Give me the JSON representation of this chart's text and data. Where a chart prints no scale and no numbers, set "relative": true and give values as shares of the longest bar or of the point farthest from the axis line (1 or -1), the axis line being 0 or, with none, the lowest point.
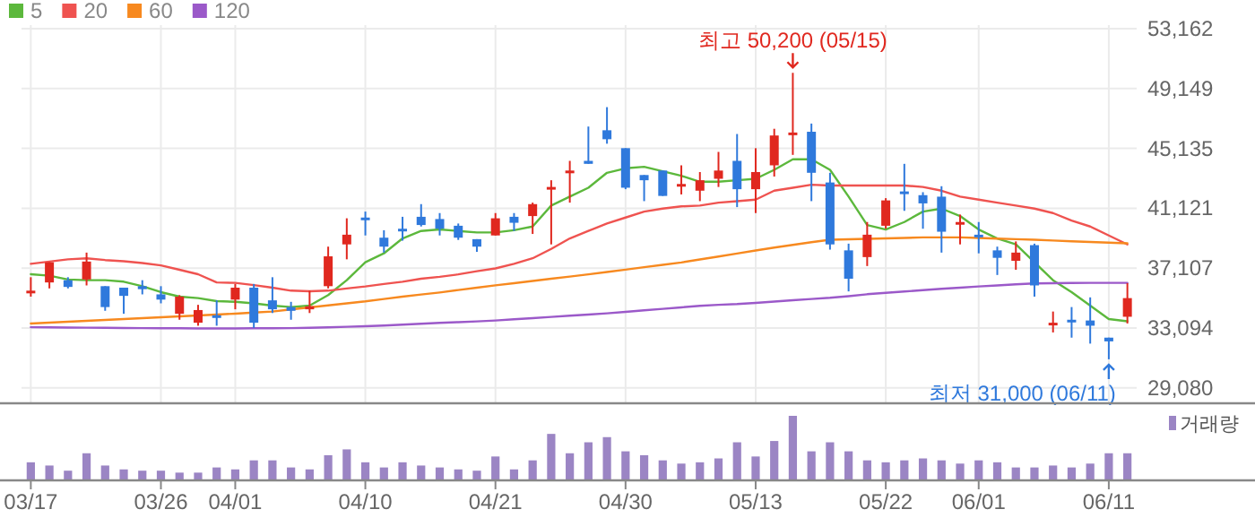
{
  "chart_data": [
    {
      "type": "candlestick",
      "categories": [
        "03/17",
        null,
        null,
        null,
        null,
        null,
        null,
        "03/26",
        null,
        null,
        null,
        "04/01",
        null,
        null,
        null,
        null,
        null,
        null,
        "04/10",
        null,
        null,
        null,
        null,
        null,
        null,
        "04/21",
        null,
        null,
        null,
        null,
        null,
        null,
        "04/30",
        null,
        null,
        null,
        null,
        null,
        null,
        "05/13",
        null,
        null,
        null,
        null,
        null,
        null,
        "05/22",
        null,
        null,
        null,
        null,
        "06/01",
        null,
        null,
        null,
        null,
        null,
        null,
        "06/11",
        null
      ],
      "ohlc": [
        [
          35500,
          36500,
          35200,
          35600
        ],
        [
          36150,
          37500,
          35750,
          37500
        ],
        [
          36300,
          36500,
          35750,
          35850
        ],
        [
          36350,
          38150,
          35950,
          37550
        ],
        [
          35900,
          35900,
          34250,
          34500
        ],
        [
          35800,
          35800,
          34050,
          35250
        ],
        [
          35900,
          36300,
          35350,
          35700
        ],
        [
          35350,
          35900,
          34750,
          35000
        ],
        [
          34050,
          35300,
          33650,
          35200
        ],
        [
          33450,
          34650,
          33250,
          34300
        ],
        [
          33950,
          34950,
          33250,
          33800
        ],
        [
          35000,
          36050,
          34350,
          35800
        ],
        [
          35800,
          36050,
          33100,
          33450
        ],
        [
          34950,
          36500,
          34100,
          34350
        ],
        [
          34500,
          34850,
          33650,
          34250
        ],
        [
          34350,
          35600,
          34100,
          34550
        ],
        [
          35900,
          38550,
          35750,
          37900
        ],
        [
          38700,
          40450,
          37700,
          39350
        ],
        [
          40500,
          40900,
          39300,
          40450
        ],
        [
          39150,
          39650,
          38150,
          38550
        ],
        [
          39750,
          40550,
          38950,
          39650
        ],
        [
          40550,
          41400,
          39900,
          40000
        ],
        [
          40400,
          40800,
          39300,
          39750
        ],
        [
          39950,
          40100,
          39000,
          39150
        ],
        [
          39050,
          39050,
          38200,
          38550
        ],
        [
          39300,
          40800,
          39300,
          40450
        ],
        [
          40550,
          40800,
          39600,
          40150
        ],
        [
          40600,
          41500,
          39400,
          41400
        ],
        [
          42450,
          43000,
          38700,
          42550
        ],
        [
          43550,
          44300,
          41500,
          43650
        ],
        [
          44300,
          46600,
          44100,
          44100
        ],
        [
          46350,
          47900,
          45450,
          45750
        ],
        [
          45150,
          45150,
          42400,
          42500
        ],
        [
          43350,
          43350,
          41600,
          43000
        ],
        [
          43650,
          43650,
          41950,
          41950
        ],
        [
          42650,
          44000,
          42050,
          42750
        ],
        [
          42300,
          43550,
          41600,
          43000
        ],
        [
          43100,
          44900,
          42550,
          43650
        ],
        [
          44300,
          46100,
          41200,
          42400
        ],
        [
          42400,
          45150,
          40800,
          43550
        ],
        [
          44000,
          46450,
          43250,
          46000
        ],
        [
          46100,
          50200,
          44700,
          46200
        ],
        [
          46250,
          46800,
          41600,
          43500
        ],
        [
          42850,
          43500,
          38350,
          38700
        ],
        [
          38300,
          38750,
          35550,
          36400
        ],
        [
          37850,
          40200,
          37250,
          39350
        ],
        [
          39950,
          41800,
          39750,
          41650
        ],
        [
          42250,
          44100,
          40950,
          42150
        ],
        [
          42000,
          42200,
          39750,
          41450
        ],
        [
          41900,
          42600,
          38150,
          39550
        ],
        [
          40100,
          40700,
          38700,
          40200
        ],
        [
          39350,
          40200,
          38100,
          39250
        ],
        [
          38300,
          38550,
          36650,
          37800
        ],
        [
          37600,
          38900,
          37000,
          38150
        ],
        [
          38650,
          38750,
          35200,
          35950
        ],
        [
          33350,
          34200,
          32800,
          33450
        ],
        [
          33650,
          34500,
          32450,
          33550
        ],
        [
          33600,
          35150,
          32050,
          33250
        ],
        [
          32450,
          32450,
          31000,
          32200
        ],
        [
          33850,
          36100,
          33400,
          35100
        ]
      ],
      "colors": [
        "#e0281f",
        "#e0281f",
        "#2f79dc",
        "#e0281f",
        "#2f79dc",
        "#2f79dc",
        "#2f79dc",
        "#2f79dc",
        "#e0281f",
        "#e0281f",
        "#2f79dc",
        "#e0281f",
        "#2f79dc",
        "#2f79dc",
        "#2f79dc",
        "#e0281f",
        "#e0281f",
        "#e0281f",
        "#2f79dc",
        "#2f79dc",
        "#2f79dc",
        "#2f79dc",
        "#2f79dc",
        "#2f79dc",
        "#2f79dc",
        "#e0281f",
        "#2f79dc",
        "#e0281f",
        "#e0281f",
        "#e0281f",
        "#2f79dc",
        "#2f79dc",
        "#2f79dc",
        "#2f79dc",
        "#2f79dc",
        "#e0281f",
        "#e0281f",
        "#e0281f",
        "#2f79dc",
        "#e0281f",
        "#e0281f",
        "#e0281f",
        "#2f79dc",
        "#2f79dc",
        "#2f79dc",
        "#e0281f",
        "#e0281f",
        "#2f79dc",
        "#2f79dc",
        "#2f79dc",
        "#e0281f",
        "#2f79dc",
        "#2f79dc",
        "#e0281f",
        "#2f79dc",
        "#e0281f",
        "#2f79dc",
        "#2f79dc",
        "#2f79dc",
        "#e0281f"
      ],
      "series": [
        {
          "name": "5",
          "type": "line",
          "color": "#5cb83c",
          "values": [
            36700,
            36600,
            36350,
            36300,
            36300,
            36200,
            35900,
            35500,
            35200,
            35100,
            34900,
            34850,
            34750,
            34600,
            34500,
            34600,
            35300,
            36300,
            37500,
            38100,
            39100,
            39600,
            39700,
            39600,
            39500,
            39500,
            39650,
            39900,
            41300,
            41900,
            42500,
            43500,
            43800,
            43900,
            43600,
            43300,
            42900,
            42900,
            43000,
            43100,
            43700,
            44400,
            44400,
            43700,
            41900,
            40000,
            39700,
            40200,
            40900,
            41100,
            40600,
            39700,
            39100,
            38700,
            37500,
            36300,
            35500,
            34600,
            33700,
            33550
          ]
        },
        {
          "name": "20",
          "type": "line",
          "color": "#ef5350",
          "values": [
            37400,
            37550,
            37700,
            37770,
            37650,
            37570,
            37450,
            37290,
            37000,
            36700,
            36150,
            36120,
            35970,
            35800,
            35600,
            35560,
            35600,
            35750,
            35880,
            36050,
            36200,
            36400,
            36530,
            36690,
            36900,
            37090,
            37400,
            37770,
            38400,
            39100,
            39600,
            40100,
            40500,
            40900,
            41100,
            41250,
            41300,
            41500,
            41600,
            41700,
            42300,
            42500,
            42700,
            42650,
            42650,
            42650,
            42650,
            42650,
            42550,
            42300,
            41900,
            41700,
            41500,
            41300,
            41100,
            40800,
            40300,
            39900,
            39300,
            38700
          ]
        },
        {
          "name": "60",
          "type": "line",
          "color": "#f7891f",
          "values": [
            33400,
            33460,
            33520,
            33580,
            33640,
            33700,
            33760,
            33820,
            33880,
            33940,
            34000,
            34060,
            34130,
            34200,
            34340,
            34480,
            34610,
            34750,
            34880,
            35040,
            35200,
            35340,
            35480,
            35640,
            35800,
            35960,
            36100,
            36250,
            36400,
            36540,
            36690,
            36850,
            37010,
            37170,
            37330,
            37490,
            37690,
            37890,
            38090,
            38290,
            38490,
            38670,
            38850,
            39010,
            39040,
            39070,
            39100,
            39130,
            39170,
            39170,
            39170,
            39130,
            39090,
            39050,
            39010,
            38960,
            38910,
            38860,
            38820,
            38770
          ]
        },
        {
          "name": "120",
          "type": "line",
          "color": "#9b59c9",
          "values": [
            33150,
            33140,
            33130,
            33120,
            33110,
            33100,
            33090,
            33080,
            33080,
            33070,
            33070,
            33070,
            33080,
            33080,
            33090,
            33110,
            33140,
            33180,
            33220,
            33260,
            33320,
            33380,
            33440,
            33490,
            33540,
            33600,
            33680,
            33760,
            33840,
            33920,
            34000,
            34080,
            34180,
            34280,
            34380,
            34480,
            34580,
            34650,
            34700,
            34780,
            34870,
            34960,
            35040,
            35120,
            35230,
            35360,
            35450,
            35540,
            35630,
            35720,
            35800,
            35880,
            35950,
            36020,
            36080,
            36100,
            36110,
            36120,
            36120,
            36120
          ]
        }
      ],
      "ylim": [
        28050,
        53400
      ],
      "yticks": [
        {
          "value": 29080,
          "label": "29,080"
        },
        {
          "value": 33094,
          "label": "33,094"
        },
        {
          "value": 37107,
          "label": "37,107"
        },
        {
          "value": 41121,
          "label": "41,121"
        },
        {
          "value": 45135,
          "label": "45,135"
        },
        {
          "value": 49149,
          "label": "49,149"
        },
        {
          "value": 53162,
          "label": "53,162"
        }
      ],
      "grid": true,
      "legend": "top left",
      "tick_labels": "y",
      "annotations": [
        {
          "text": "최고 50,200 (05/15)",
          "y": 50200
        },
        {
          "text": "최저 31,000 (06/11)",
          "x": "06/11",
          "y": 31000
        }
      ]
    },
    {
      "type": "bar",
      "categories": [
        "03/17",
        null,
        null,
        null,
        null,
        null,
        null,
        "03/26",
        null,
        null,
        null,
        "04/01",
        null,
        null,
        null,
        null,
        null,
        null,
        "04/10",
        null,
        null,
        null,
        null,
        null,
        null,
        "04/21",
        null,
        null,
        null,
        null,
        null,
        null,
        "04/30",
        null,
        null,
        null,
        null,
        null,
        null,
        "05/13",
        null,
        null,
        null,
        null,
        null,
        null,
        "05/22",
        null,
        null,
        null,
        null,
        "06/01",
        null,
        null,
        null,
        null,
        null,
        null,
        "06/11",
        null
      ],
      "relative": true,
      "series": [
        {
          "name": "거래량",
          "color": "#9b85c4",
          "values": [
            0.28,
            0.23,
            0.15,
            0.42,
            0.23,
            0.17,
            0.15,
            0.15,
            0.12,
            0.12,
            0.2,
            0.17,
            0.31,
            0.31,
            0.2,
            0.17,
            0.39,
            0.48,
            0.28,
            0.2,
            0.28,
            0.23,
            0.2,
            0.17,
            0.15,
            0.37,
            0.17,
            0.31,
            0.72,
            0.42,
            0.59,
            0.67,
            0.45,
            0.39,
            0.31,
            0.26,
            0.28,
            0.34,
            0.59,
            0.37,
            0.61,
            1,
            0.45,
            0.59,
            0.45,
            0.31,
            0.28,
            0.31,
            0.34,
            0.31,
            0.26,
            0.31,
            0.28,
            0.2,
            0.2,
            0.23,
            0.2,
            0.26,
            0.42,
            0.42
          ]
        }
      ],
      "legend": "top right",
      "tick_labels": "x",
      "grid": false
    }
  ]
}
